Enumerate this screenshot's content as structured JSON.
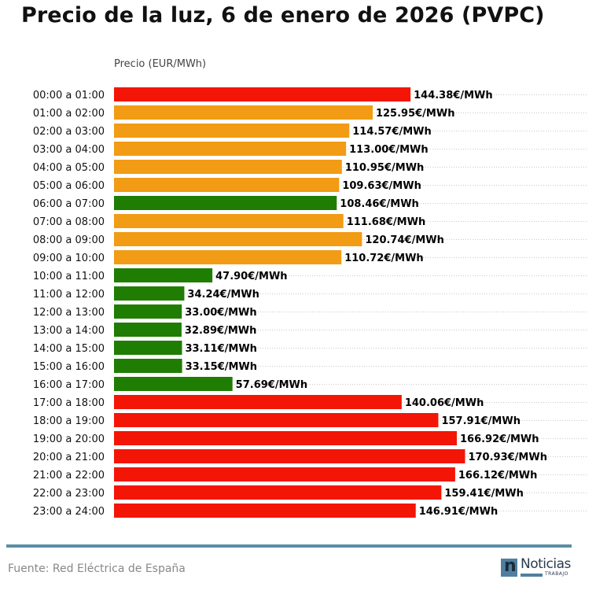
{
  "chart_data": {
    "type": "bar",
    "orientation": "horizontal",
    "title": "Precio de la luz, 6 de enero de 2026 (PVPC)",
    "xlabel": "Precio (EUR/MWh)",
    "ylabel": "",
    "value_suffix": "€/MWh",
    "xlim": [
      0,
      230
    ],
    "grid": "horizontal dotted",
    "categories": [
      "00:00 a 01:00",
      "01:00 a 02:00",
      "02:00 a 03:00",
      "03:00 a 04:00",
      "04:00 a 05:00",
      "05:00 a 06:00",
      "06:00 a 07:00",
      "07:00 a 08:00",
      "08:00 a 09:00",
      "09:00 a 10:00",
      "10:00 a 11:00",
      "11:00 a 12:00",
      "12:00 a 13:00",
      "13:00 a 14:00",
      "14:00 a 15:00",
      "15:00 a 16:00",
      "16:00 a 17:00",
      "17:00 a 18:00",
      "18:00 a 19:00",
      "19:00 a 20:00",
      "20:00 a 21:00",
      "21:00 a 22:00",
      "22:00 a 23:00",
      "23:00 a 24:00"
    ],
    "values": [
      144.38,
      125.95,
      114.57,
      113.0,
      110.95,
      109.63,
      108.46,
      111.68,
      120.74,
      110.72,
      47.9,
      34.24,
      33.0,
      32.89,
      33.11,
      33.15,
      57.69,
      140.06,
      157.91,
      166.92,
      170.93,
      166.12,
      159.41,
      146.91
    ],
    "labels": [
      "144.38€/MWh",
      "125.95€/MWh",
      "114.57€/MWh",
      "113.00€/MWh",
      "110.95€/MWh",
      "109.63€/MWh",
      "108.46€/MWh",
      "111.68€/MWh",
      "120.74€/MWh",
      "110.72€/MWh",
      "47.90€/MWh",
      "34.24€/MWh",
      "33.00€/MWh",
      "32.89€/MWh",
      "33.11€/MWh",
      "33.15€/MWh",
      "57.69€/MWh",
      "140.06€/MWh",
      "157.91€/MWh",
      "166.92€/MWh",
      "170.93€/MWh",
      "166.12€/MWh",
      "159.41€/MWh",
      "146.91€/MWh"
    ],
    "price_level": [
      "high",
      "mid",
      "mid",
      "mid",
      "mid",
      "mid",
      "low",
      "mid",
      "mid",
      "mid",
      "low",
      "low",
      "low",
      "low",
      "low",
      "low",
      "low",
      "high",
      "high",
      "high",
      "high",
      "high",
      "high",
      "high"
    ],
    "colors": {
      "high": "#f31505",
      "mid": "#f29b14",
      "low": "#1f7d03"
    }
  },
  "footer": {
    "source": "Fuente: Red Eléctrica de España",
    "logo_text": "Noticias",
    "logo_sub": "TRABAJO",
    "accent_color": "#5b8ea6"
  }
}
